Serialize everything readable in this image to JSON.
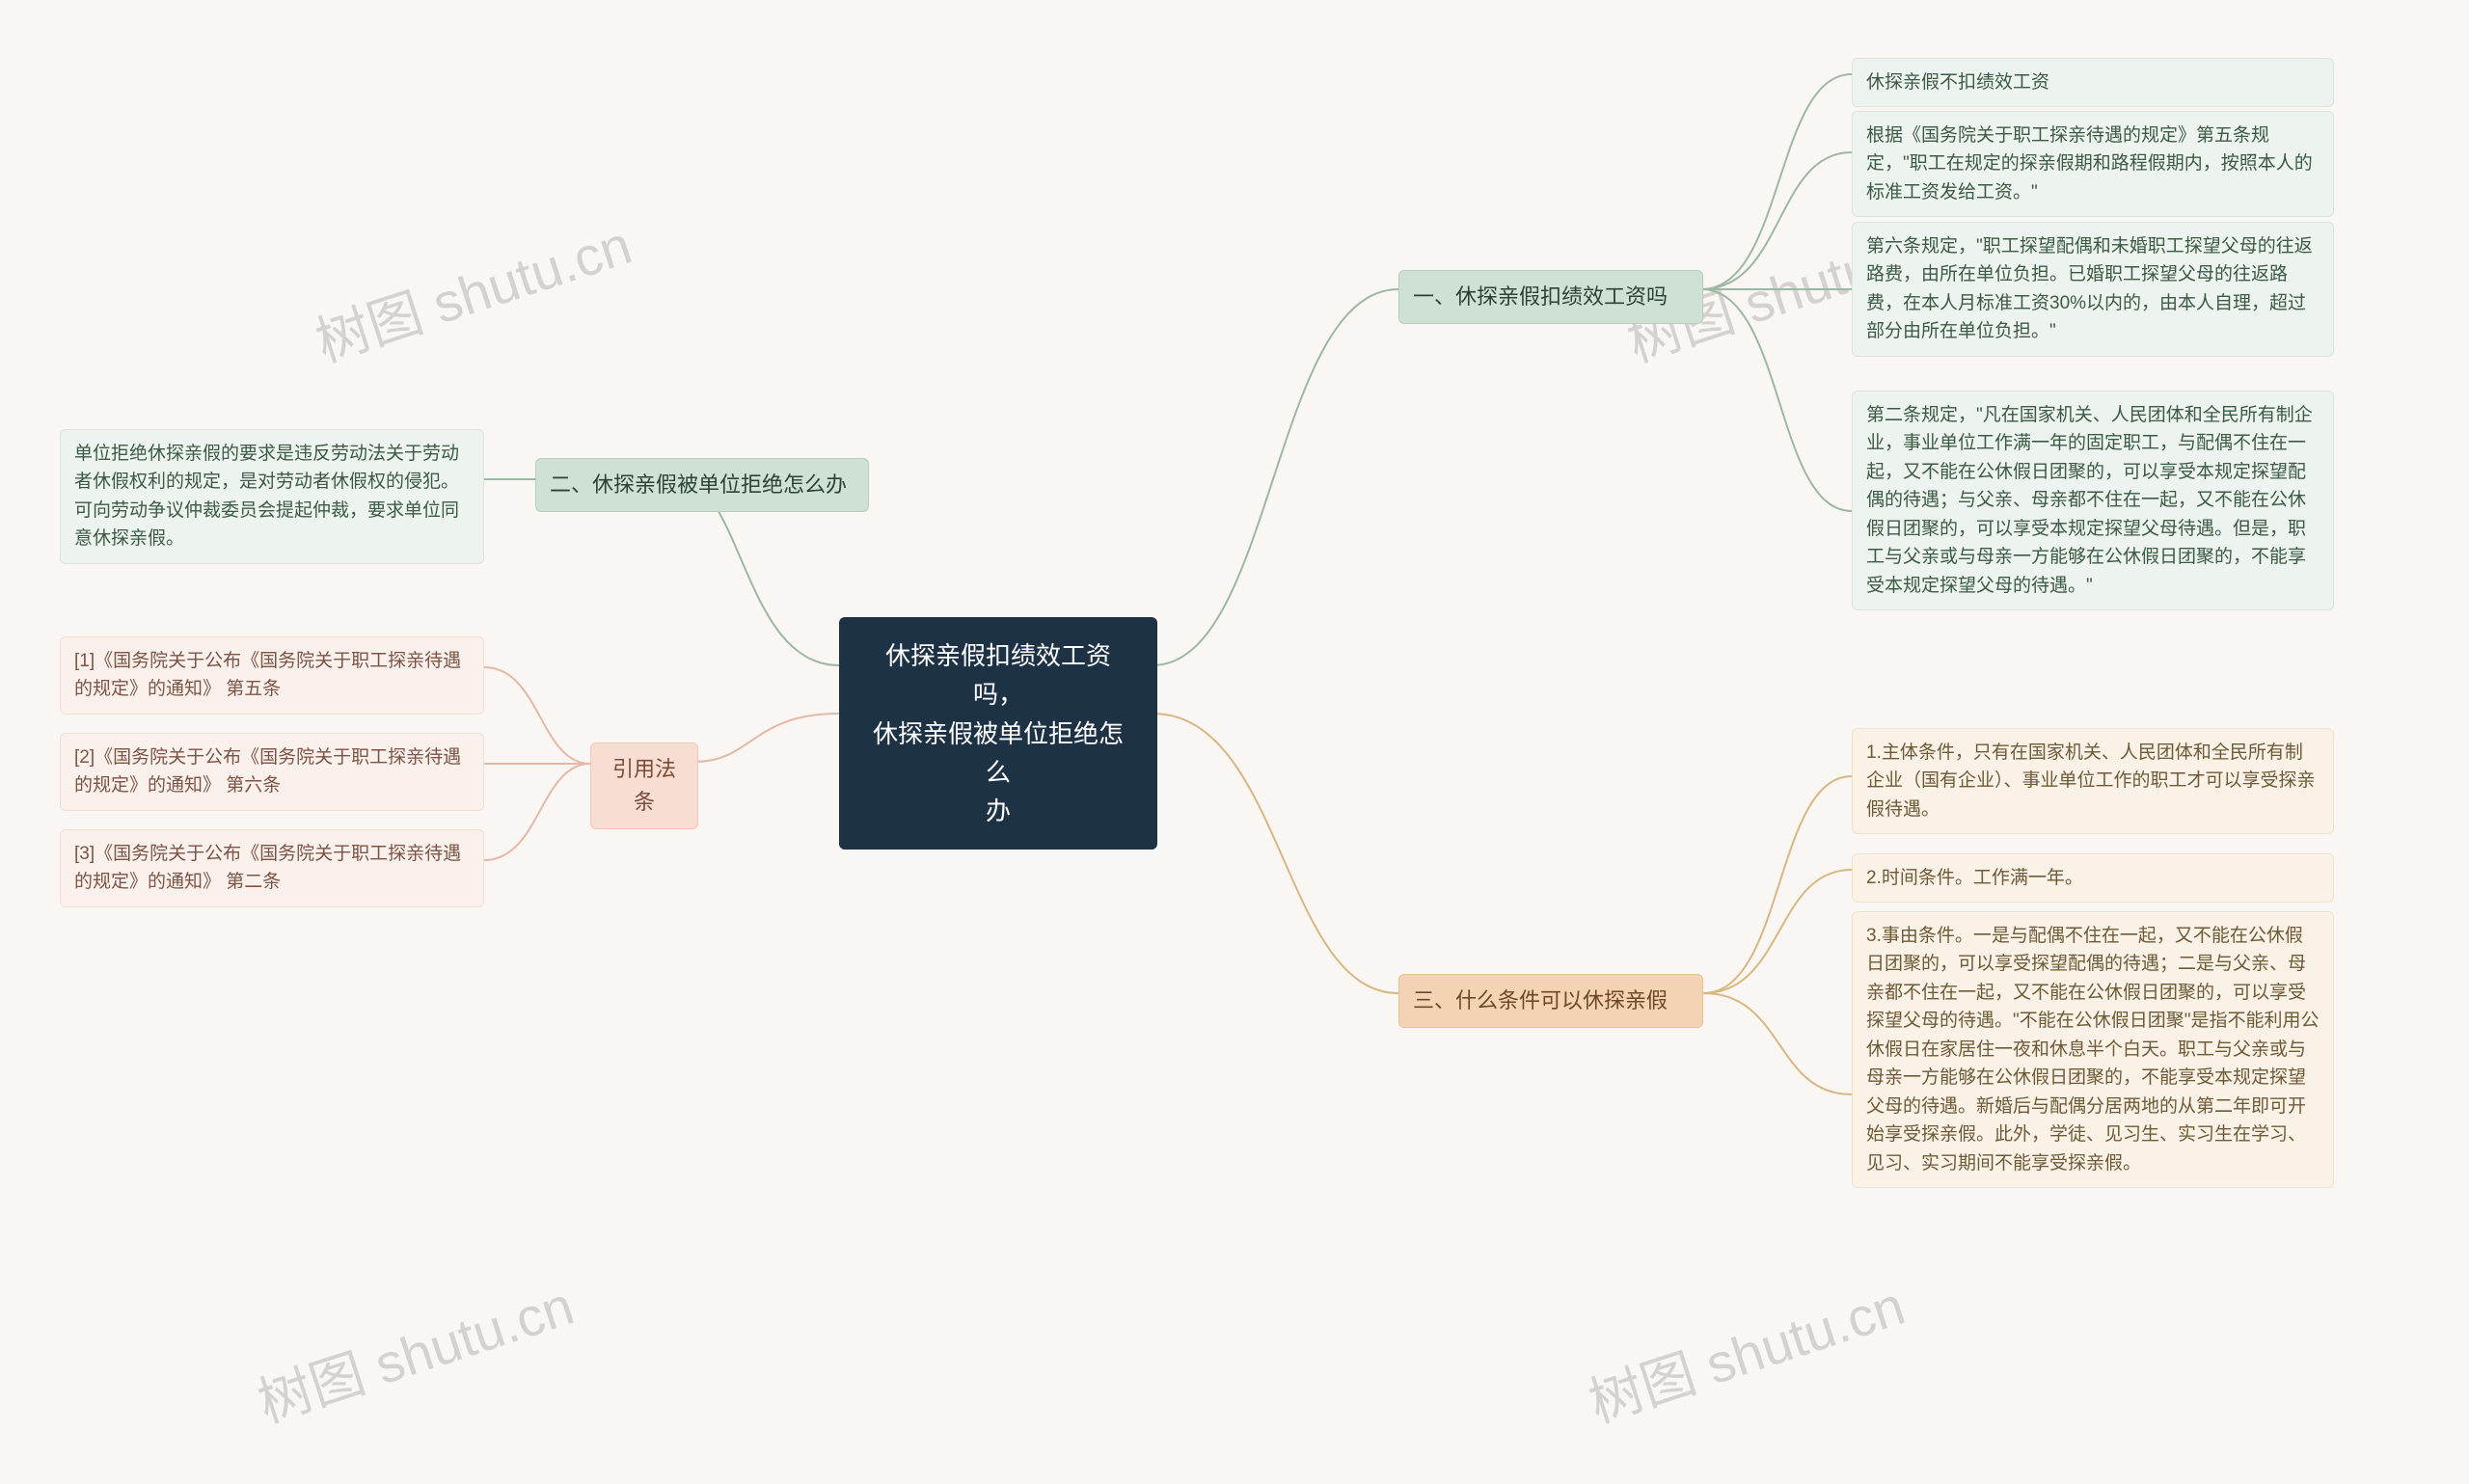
{
  "type": "mindmap",
  "background_color": "#faf6f3",
  "watermark_text": "树图 shutu.cn",
  "root": {
    "text": "休探亲假扣绩效工资吗，\n休探亲假被单位拒绝怎么\n办",
    "bg": "#1e3246",
    "fg": "#ffffff"
  },
  "right_branches": [
    {
      "label": "一、休探亲假扣绩效工资吗",
      "color_scheme": "green",
      "bg": "#cfe1d4",
      "fg": "#2b4234",
      "leaves": [
        {
          "text": "休探亲假不扣绩效工资"
        },
        {
          "text": "根据《国务院关于职工探亲待遇的规定》第五条规定，\"职工在规定的探亲假期和路程假期内，按照本人的标准工资发给工资。\""
        },
        {
          "text": "第六条规定，\"职工探望配偶和未婚职工探望父母的往返路费，由所在单位负担。已婚职工探望父母的往返路费，在本人月标准工资30%以内的，由本人自理，超过部分由所在单位负担。\""
        },
        {
          "text": "第二条规定，\"凡在国家机关、人民团体和全民所有制企业，事业单位工作满一年的固定职工，与配偶不住在一起，又不能在公休假日团聚的，可以享受本规定探望配偶的待遇；与父亲、母亲都不住在一起，又不能在公休假日团聚的，可以享受本规定探望父母待遇。但是，职工与父亲或与母亲一方能够在公休假日团聚的，不能享受本规定探望父母的待遇。\""
        }
      ]
    },
    {
      "label": "三、什么条件可以休探亲假",
      "color_scheme": "orange",
      "bg": "#f3d3b3",
      "fg": "#6b4a25",
      "leaves": [
        {
          "text": "1.主体条件，只有在国家机关、人民团体和全民所有制企业（国有企业）、事业单位工作的职工才可以享受探亲假待遇。"
        },
        {
          "text": "2.时间条件。工作满一年。"
        },
        {
          "text": "3.事由条件。一是与配偶不住在一起，又不能在公休假日团聚的，可以享受探望配偶的待遇；二是与父亲、母亲都不住在一起，又不能在公休假日团聚的，可以享受探望父母的待遇。\"不能在公休假日团聚\"是指不能利用公休假日在家居住一夜和休息半个白天。职工与父亲或与母亲一方能够在公休假日团聚的，不能享受本规定探望父母的待遇。新婚后与配偶分居两地的从第二年即可开始享受探亲假。此外，学徒、见习生、实习生在学习、见习、实习期间不能享受探亲假。"
        }
      ]
    }
  ],
  "left_branches": [
    {
      "label": "二、休探亲假被单位拒绝怎么办",
      "color_scheme": "green",
      "bg": "#cfe1d4",
      "fg": "#2b4234",
      "leaves": [
        {
          "text": "单位拒绝休探亲假的要求是违反劳动法关于劳动者休假权利的规定，是对劳动者休假权的侵犯。可向劳动争议仲裁委员会提起仲裁，要求单位同意休探亲假。"
        }
      ]
    },
    {
      "label": "引用法条",
      "color_scheme": "peach",
      "bg": "#f8ded2",
      "fg": "#7a4c38",
      "leaves": [
        {
          "text": "[1]《国务院关于公布《国务院关于职工探亲待遇的规定》的通知》 第五条"
        },
        {
          "text": "[2]《国务院关于公布《国务院关于职工探亲待遇的规定》的通知》 第六条"
        },
        {
          "text": "[3]《国务院关于公布《国务院关于职工探亲待遇的规定》的通知》 第二条"
        }
      ]
    }
  ],
  "connector_colors": {
    "green": "#9cb8a2",
    "orange": "#d7b882",
    "peach": "#e3b9a5"
  },
  "leaf_bg": {
    "green": "#edf3ee",
    "orange": "#faf2e6",
    "peach": "#fbf1ec"
  }
}
